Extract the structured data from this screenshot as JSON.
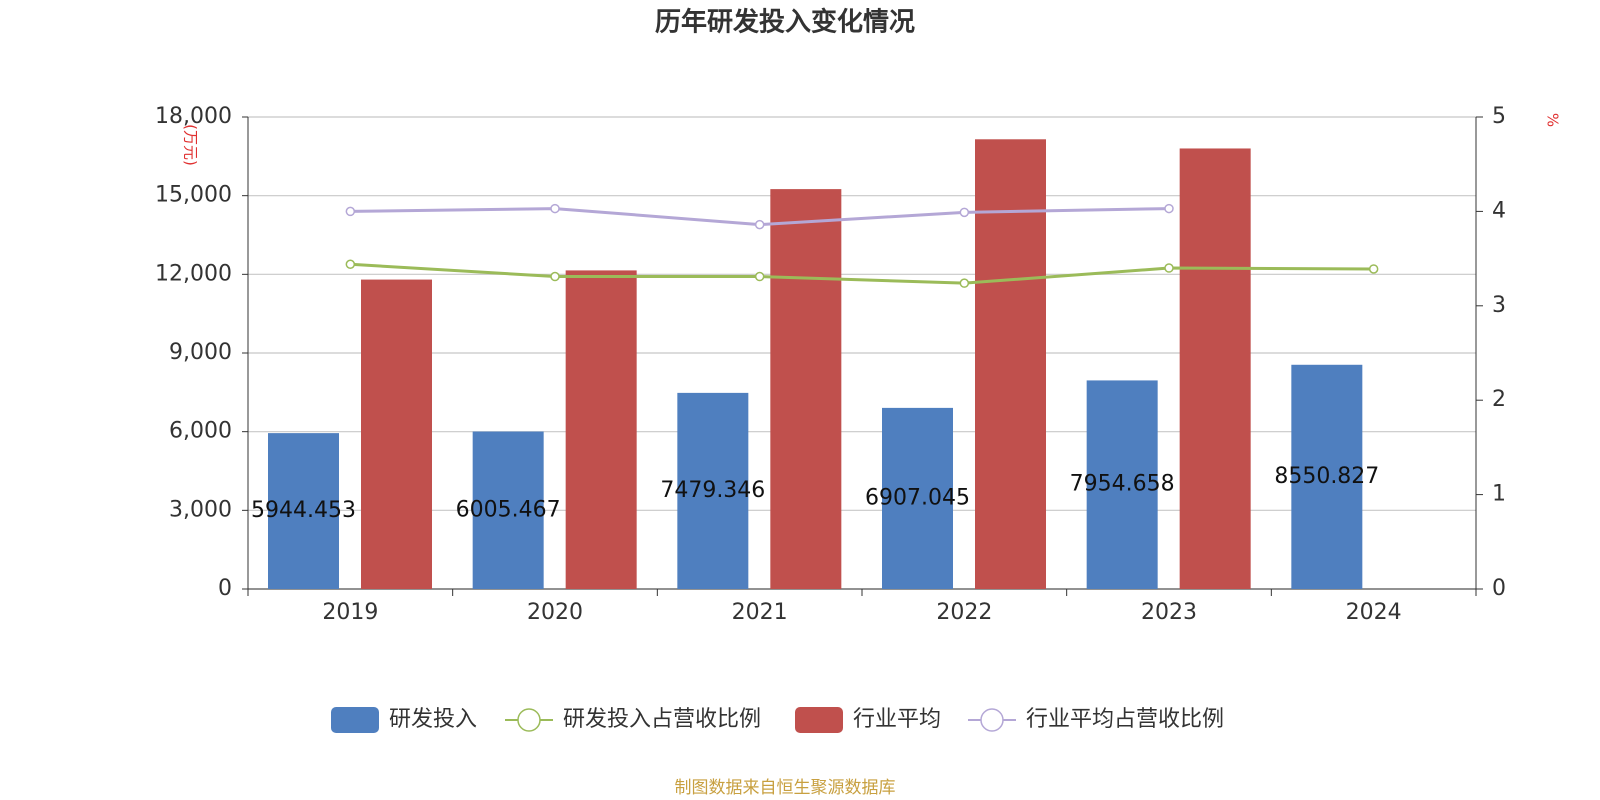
{
  "chart_data": {
    "type": "bar",
    "title": "历年研发投入变化情况",
    "y_label": "(万元)",
    "y2_label": "%",
    "source": "制图数据来自恒生聚源数据库",
    "categories": [
      "2019",
      "2020",
      "2021",
      "2022",
      "2023",
      "2024"
    ],
    "ylim": [
      0,
      18000
    ],
    "yticks": [
      0,
      {
        "value": 3000,
        "label": "3,000"
      },
      {
        "value": 6000,
        "label": "6,000"
      },
      {
        "value": 9000,
        "label": "9,000"
      },
      {
        "value": 12000,
        "label": "12,000"
      },
      {
        "value": 15000,
        "label": "15,000"
      },
      {
        "value": 18000,
        "label": "18,000"
      }
    ],
    "y2lim": [
      0,
      5
    ],
    "y2ticks": [
      0,
      1,
      2,
      3,
      4,
      5
    ],
    "grid": true,
    "series": [
      {
        "name": "研发投入",
        "type": "bar",
        "color": "#4f7fbf",
        "values": [
          5944.453,
          6005.467,
          7479.346,
          6907.045,
          7954.658,
          8550.827
        ]
      },
      {
        "name": "研发投入占营收比例",
        "type": "line",
        "axis": "y2",
        "color": "#9bbb59",
        "values": [
          3.44,
          3.31,
          3.31,
          3.24,
          3.4,
          3.39
        ]
      },
      {
        "name": "行业平均",
        "type": "bar",
        "color": "#c0504d",
        "values": [
          11800,
          12150,
          15250,
          17150,
          16800,
          null
        ]
      },
      {
        "name": "行业平均占营收比例",
        "type": "line",
        "axis": "y2",
        "color": "#b4a7d6",
        "values": [
          4.0,
          4.03,
          3.86,
          3.99,
          4.03,
          null
        ]
      }
    ]
  }
}
